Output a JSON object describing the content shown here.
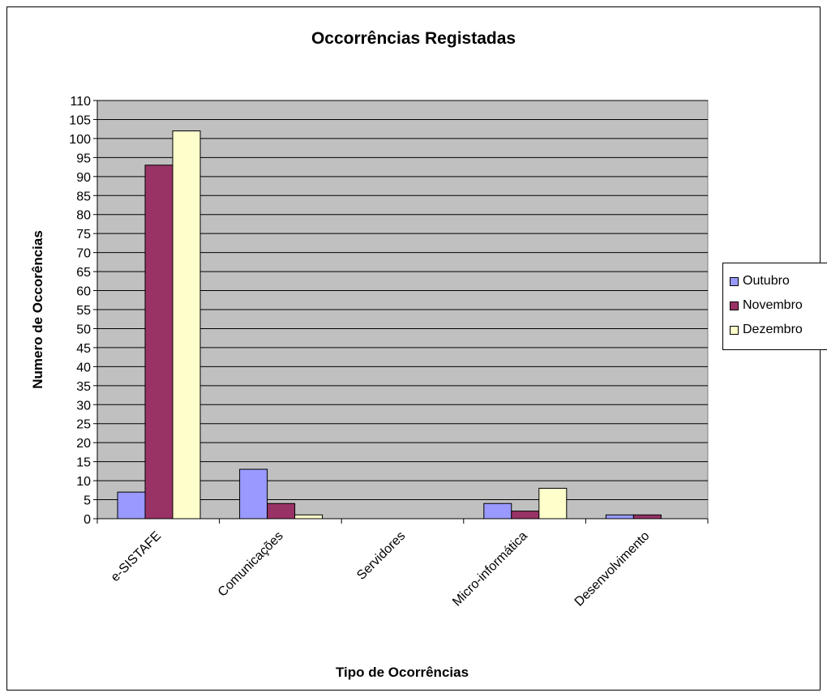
{
  "chart_data": {
    "type": "bar",
    "title": "Occorrências Registadas",
    "xlabel": "Tipo de Ocorrências",
    "ylabel": "Numero de Occorências",
    "categories": [
      "e-SISTAFE",
      "Comunicações",
      "Servidores",
      "Micro-informática",
      "Desenvolvimento"
    ],
    "series": [
      {
        "name": "Outubro",
        "values": [
          7,
          13,
          0,
          4,
          1
        ],
        "color": "#9999ff"
      },
      {
        "name": "Novembro",
        "values": [
          93,
          4,
          0,
          2,
          1
        ],
        "color": "#993366"
      },
      {
        "name": "Dezembro",
        "values": [
          102,
          1,
          0,
          8,
          0
        ],
        "color": "#ffffcc"
      }
    ],
    "ylim": [
      0,
      110
    ],
    "yticks": [
      0,
      5,
      10,
      15,
      20,
      25,
      30,
      35,
      40,
      45,
      50,
      55,
      60,
      65,
      70,
      75,
      80,
      85,
      90,
      95,
      100,
      105,
      110
    ],
    "plot_background": "#c0c0c0",
    "grid": true,
    "legend_position": "right"
  }
}
